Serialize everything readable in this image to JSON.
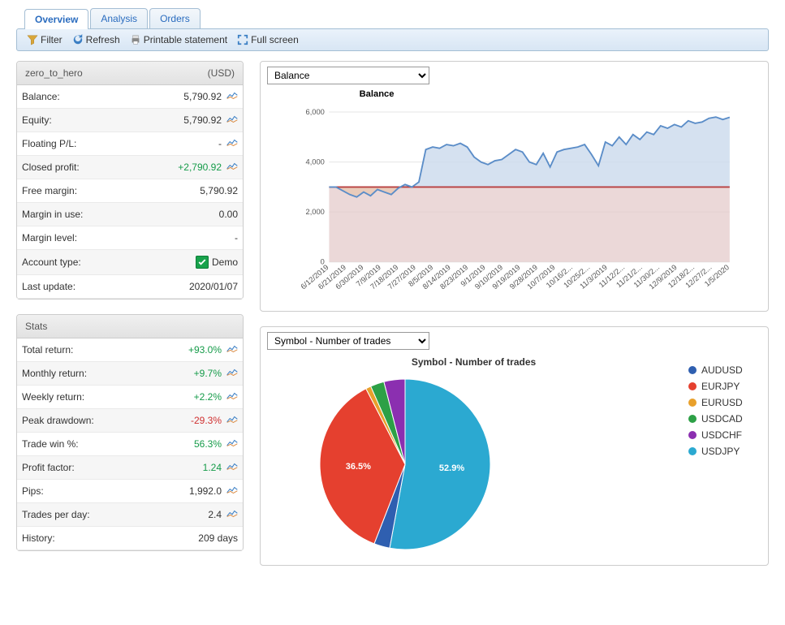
{
  "tabs": {
    "items": [
      {
        "label": "Overview",
        "active": true
      },
      {
        "label": "Analysis",
        "active": false
      },
      {
        "label": "Orders",
        "active": false
      }
    ]
  },
  "toolbar": {
    "filter": "Filter",
    "refresh": "Refresh",
    "printable": "Printable statement",
    "fullscreen": "Full screen"
  },
  "account": {
    "name": "zero_to_hero",
    "currency": "(USD)",
    "rows": [
      {
        "label": "Balance:",
        "value": "5,790.92",
        "cls": "",
        "icon": true
      },
      {
        "label": "Equity:",
        "value": "5,790.92",
        "cls": "",
        "icon": true
      },
      {
        "label": "Floating P/L:",
        "value": "-",
        "cls": "",
        "icon": true
      },
      {
        "label": "Closed profit:",
        "value": "+2,790.92",
        "cls": "pos",
        "icon": true
      },
      {
        "label": "Free margin:",
        "value": "5,790.92",
        "cls": "",
        "icon": false
      },
      {
        "label": "Margin in use:",
        "value": "0.00",
        "cls": "",
        "icon": false
      },
      {
        "label": "Margin level:",
        "value": "-",
        "cls": "",
        "icon": false
      },
      {
        "label": "Account type:",
        "value": "Demo",
        "cls": "",
        "icon": false,
        "demo": true
      },
      {
        "label": "Last update:",
        "value": "2020/01/07",
        "cls": "",
        "icon": false
      }
    ]
  },
  "stats": {
    "title": "Stats",
    "rows": [
      {
        "label": "Total return:",
        "value": "+93.0%",
        "cls": "pos",
        "icon": true
      },
      {
        "label": "Monthly return:",
        "value": "+9.7%",
        "cls": "pos",
        "icon": true
      },
      {
        "label": "Weekly return:",
        "value": "+2.2%",
        "cls": "pos",
        "icon": true
      },
      {
        "label": "Peak drawdown:",
        "value": "-29.3%",
        "cls": "neg",
        "icon": true
      },
      {
        "label": "Trade win %:",
        "value": "56.3%",
        "cls": "pos",
        "icon": true
      },
      {
        "label": "Profit factor:",
        "value": "1.24",
        "cls": "pos",
        "icon": true
      },
      {
        "label": "Pips:",
        "value": "1,992.0",
        "cls": "",
        "icon": true
      },
      {
        "label": "Trades per day:",
        "value": "2.4",
        "cls": "",
        "icon": true
      },
      {
        "label": "History:",
        "value": "209 days",
        "cls": "",
        "icon": false
      }
    ]
  },
  "balanceChart": {
    "selector": "Balance",
    "title": "Balance",
    "ylim": [
      0,
      6500
    ],
    "yticks": [
      0,
      2000,
      4000,
      6000
    ],
    "ytick_labels": [
      "0",
      "2,000",
      "4,000",
      "6,000"
    ],
    "x_labels": [
      "6/12/2019",
      "6/21/2019",
      "6/30/2019",
      "7/9/2019",
      "7/18/2019",
      "7/27/2019",
      "8/5/2019",
      "8/14/2019",
      "8/23/2019",
      "9/1/2019",
      "9/10/2019",
      "9/19/2019",
      "9/28/2019",
      "10/7/2019",
      "10/16/2...",
      "10/25/2...",
      "11/3/2019",
      "11/12/2...",
      "11/21/2...",
      "11/30/2...",
      "12/9/2019",
      "12/18/2...",
      "12/27/2...",
      "1/5/2020"
    ],
    "baseline": 3000,
    "series": [
      3000,
      3000,
      2850,
      2700,
      2600,
      2800,
      2650,
      2900,
      2800,
      2700,
      2950,
      3100,
      3000,
      3200,
      4500,
      4600,
      4550,
      4700,
      4650,
      4750,
      4600,
      4200,
      4000,
      3900,
      4050,
      4100,
      4300,
      4500,
      4400,
      4000,
      3900,
      4350,
      3800,
      4400,
      4500,
      4550,
      4600,
      4700,
      4300,
      3850,
      4800,
      4650,
      5000,
      4700,
      5100,
      4900,
      5200,
      5100,
      5450,
      5350,
      5500,
      5400,
      5650,
      5550,
      5600,
      5750,
      5800,
      5700,
      5790
    ],
    "grid_color": "#e5e5e5",
    "line_color": "#5b8dc8",
    "area_above_fill": "#cedced",
    "area_below_fill": "#e9cab7",
    "baseline_color": "#b84040",
    "baseline_fill": "#e2c7c7",
    "axis_font_color": "#555555"
  },
  "pieChart": {
    "selector": "Symbol - Number of trades",
    "title": "Symbol - Number of trades",
    "slices": [
      {
        "label": "USDJPY",
        "pct": 52.9,
        "color": "#2ba9d1",
        "showLabel": "52.9%"
      },
      {
        "label": "AUDUSD",
        "pct": 3.0,
        "color": "#2f5fb0",
        "showLabel": ""
      },
      {
        "label": "EURJPY",
        "pct": 36.5,
        "color": "#e5402f",
        "showLabel": "36.5%"
      },
      {
        "label": "EURUSD",
        "pct": 1.0,
        "color": "#e8a02b",
        "showLabel": ""
      },
      {
        "label": "USDCAD",
        "pct": 2.6,
        "color": "#2da046",
        "showLabel": ""
      },
      {
        "label": "USDCHF",
        "pct": 4.0,
        "color": "#8b2fb0",
        "showLabel": ""
      }
    ],
    "legend_order": [
      "AUDUSD",
      "EURJPY",
      "EURUSD",
      "USDCAD",
      "USDCHF",
      "USDJPY"
    ]
  },
  "colors": {
    "panel_border": "#cccccc",
    "tab_border": "#a4bed4",
    "pos": "#159b49",
    "neg": "#d03030"
  }
}
